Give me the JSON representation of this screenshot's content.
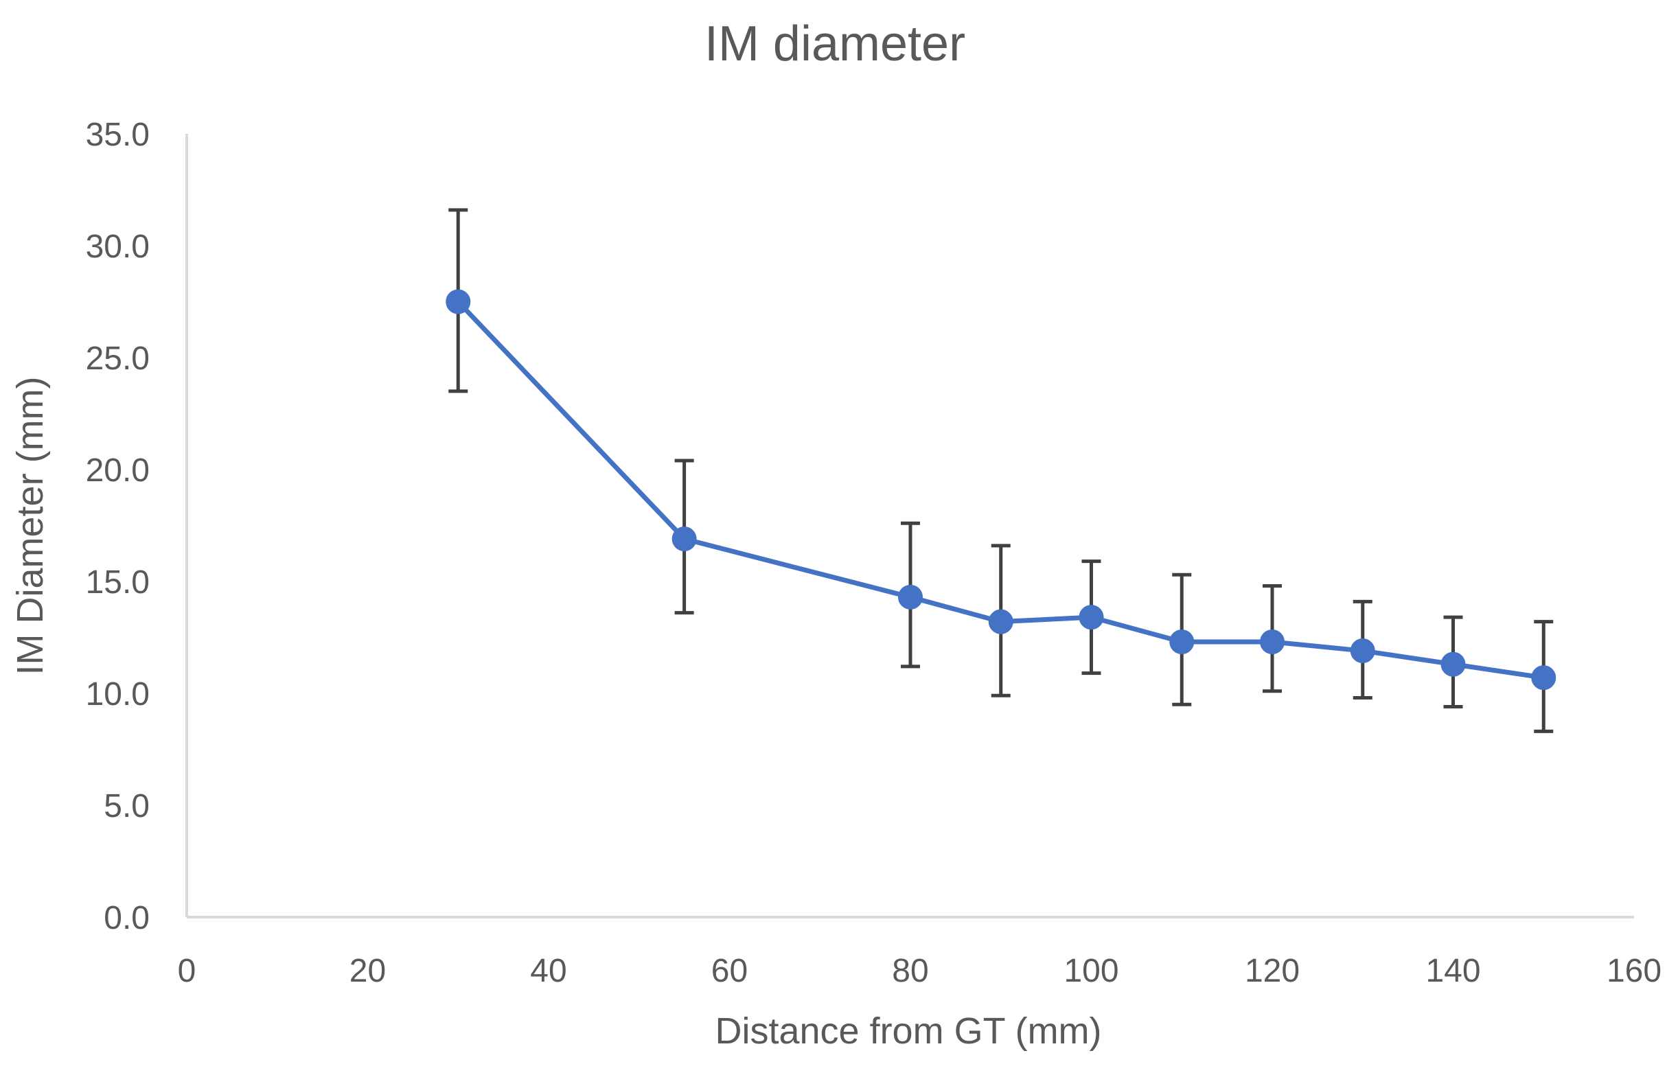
{
  "chart_data": {
    "type": "line",
    "title": "IM diameter",
    "xlabel": "Distance from GT (mm)",
    "ylabel": "IM Diameter (mm)",
    "xlim": [
      0,
      160
    ],
    "ylim": [
      0,
      35
    ],
    "x_ticks": [
      "0",
      "20",
      "40",
      "60",
      "80",
      "100",
      "120",
      "140",
      "160"
    ],
    "y_ticks": [
      "0.0",
      "5.0",
      "10.0",
      "15.0",
      "20.0",
      "25.0",
      "30.0",
      "35.0"
    ],
    "grid": false,
    "legend": "none",
    "series": [
      {
        "color": "#4472c4",
        "marker": "circle",
        "x": [
          30,
          55,
          80,
          90,
          100,
          110,
          120,
          130,
          140,
          150
        ],
        "y": [
          27.5,
          16.9,
          14.3,
          13.2,
          13.4,
          12.3,
          12.3,
          11.9,
          11.3,
          10.7
        ],
        "error_low": [
          23.5,
          13.6,
          11.2,
          9.9,
          10.9,
          9.5,
          10.1,
          9.8,
          9.4,
          8.3
        ],
        "error_high": [
          31.6,
          20.4,
          17.6,
          16.6,
          15.9,
          15.3,
          14.8,
          14.1,
          13.4,
          13.2
        ]
      }
    ]
  },
  "colors": {
    "series": "#4472c4",
    "error_bar": "#404040",
    "axis": "#d9d9d9",
    "text": "#595959"
  }
}
